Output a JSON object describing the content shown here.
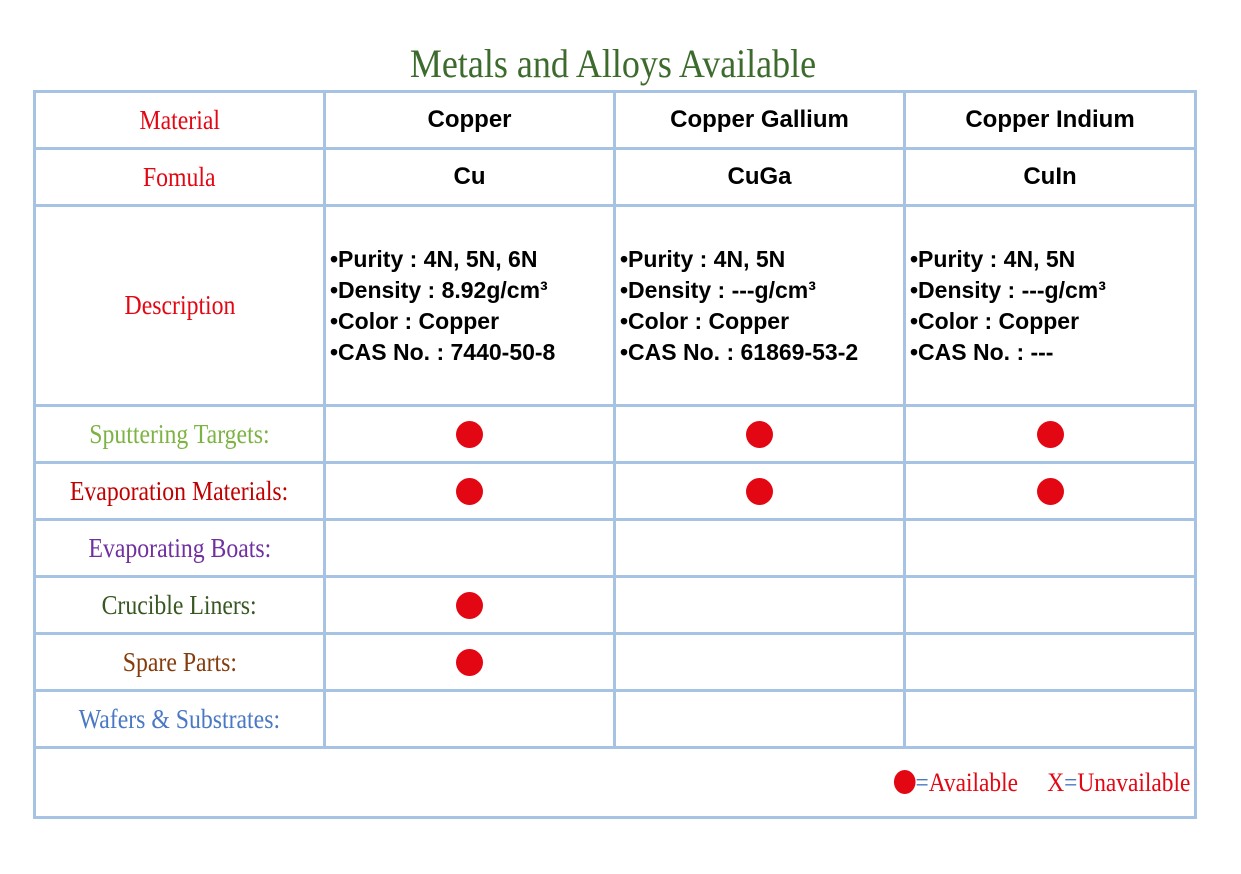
{
  "title": "Metals and Alloys Available",
  "labels": {
    "material": "Material",
    "formula": "Fomula",
    "description": "Description",
    "sputtering": "Sputtering Targets:",
    "evaporation": "Evaporation Materials:",
    "boats": "Evaporating Boats:",
    "crucible": "Crucible Liners:",
    "spare": "Spare Parts:",
    "wafers": "Wafers & Substrates:"
  },
  "label_colors": {
    "material": "#e30613",
    "formula": "#e30613",
    "description": "#e30613",
    "sputtering": "#7cb342",
    "evaporation": "#c00000",
    "boats": "#7030a0",
    "crucible": "#385723",
    "spare": "#843c0c",
    "wafers": "#4a78c2"
  },
  "materials": [
    {
      "name": "Copper",
      "formula": "Cu",
      "desc": [
        "•Purity : 4N, 5N, 6N",
        "•Density : 8.92g/cm³",
        "•Color : Copper",
        "•CAS No. : 7440-50-8"
      ],
      "availability": {
        "sputtering": true,
        "evaporation": true,
        "boats": false,
        "crucible": true,
        "spare": true,
        "wafers": false
      }
    },
    {
      "name": "Copper Gallium",
      "formula": "CuGa",
      "desc": [
        "•Purity : 4N, 5N",
        "•Density : ---g/cm³",
        "•Color : Copper",
        "•CAS No. : 61869-53-2"
      ],
      "availability": {
        "sputtering": true,
        "evaporation": true,
        "boats": false,
        "crucible": false,
        "spare": false,
        "wafers": false
      }
    },
    {
      "name": "Copper Indium",
      "formula": "CuIn",
      "desc": [
        "•Purity : 4N, 5N",
        "•Density : ---g/cm³",
        "•Color : Copper",
        "•CAS No. : ---"
      ],
      "availability": {
        "sputtering": true,
        "evaporation": true,
        "boats": false,
        "crucible": false,
        "spare": false,
        "wafers": false
      }
    }
  ],
  "legend": {
    "equals": "=",
    "available": "Available",
    "x": "X",
    "unavailable": "Unavailable"
  },
  "colors": {
    "grid": "#a7c3e3",
    "dot": "#e30613",
    "title": "#3d6b2d"
  }
}
